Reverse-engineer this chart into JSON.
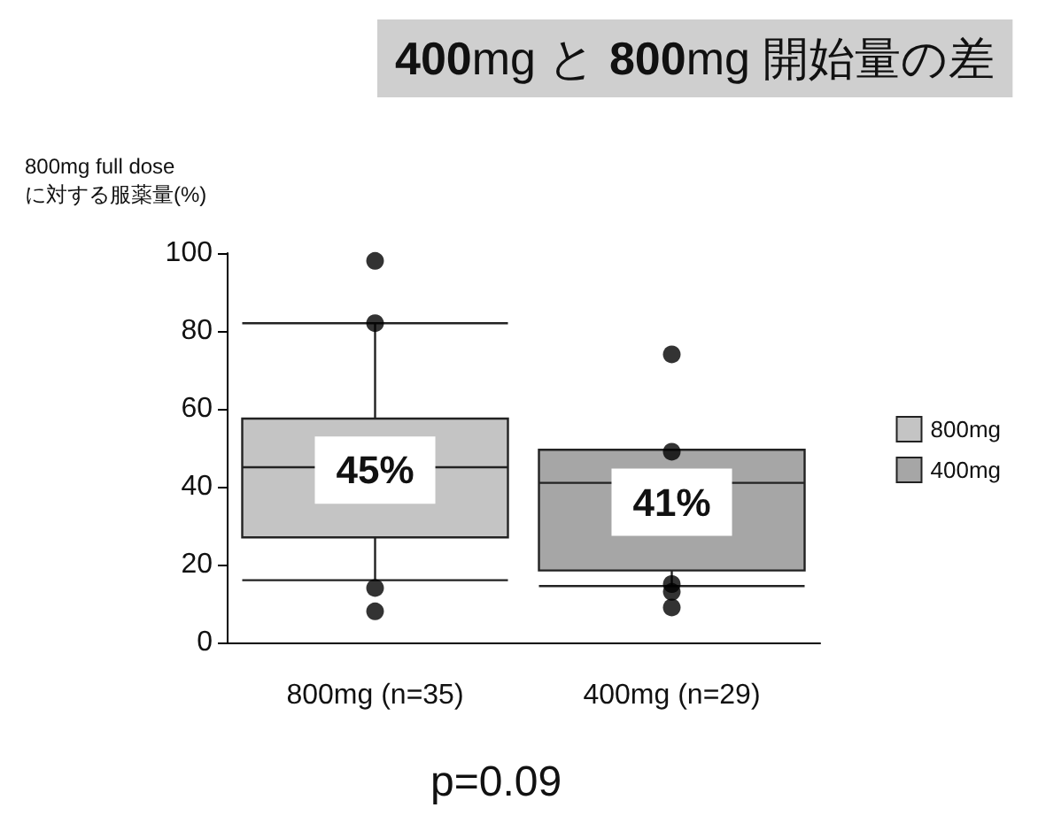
{
  "chart_data": {
    "type": "box",
    "title": "400mg と 800mg 開始量の差",
    "ylabel": "800mg full dose\nに対する服薬量(%)",
    "categories": [
      "800mg (n=35)",
      "400mg (n=29)"
    ],
    "series": [
      {
        "name": "800mg",
        "color": "#c4c4c4",
        "boxes": [
          {
            "low": 16,
            "q1": 27,
            "median": 45,
            "q3": 57.5,
            "high": 82,
            "outliers": [
              98,
              82,
              14,
              8
            ]
          },
          null
        ],
        "value_labels": [
          "45%",
          null
        ]
      },
      {
        "name": "400mg",
        "color": "#a6a6a6",
        "boxes": [
          null,
          {
            "low": 14.5,
            "q1": 18.5,
            "median": 41,
            "q3": 49.5,
            "high": 49.5,
            "outliers": [
              74,
              49,
              15,
              13,
              9
            ]
          }
        ],
        "value_labels": [
          null,
          "41%"
        ]
      }
    ],
    "ylim": [
      0,
      100
    ],
    "yticks": [
      0,
      20,
      40,
      60,
      80,
      100
    ],
    "grid": false,
    "legend": "right",
    "annotations": [
      "p=0.09"
    ]
  }
}
